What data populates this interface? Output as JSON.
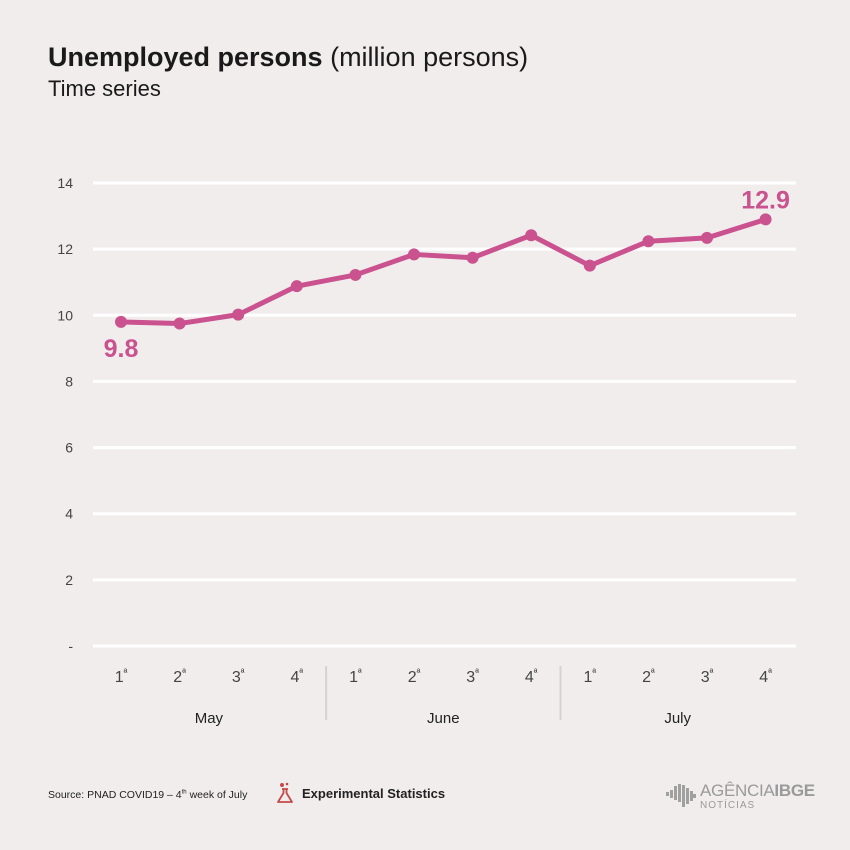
{
  "header": {
    "title": "Unemployed persons",
    "unit": "(million persons)",
    "subtitle": "Time series"
  },
  "chart_data": {
    "type": "line",
    "title": "Unemployed persons (million persons)",
    "subtitle": "Time series",
    "x": [
      "1ª",
      "2ª",
      "3ª",
      "4ª",
      "1ª",
      "2ª",
      "3ª",
      "4ª",
      "1ª",
      "2ª",
      "3ª",
      "4ª"
    ],
    "groups": [
      {
        "label": "May",
        "count": 4
      },
      {
        "label": "June",
        "count": 4
      },
      {
        "label": "July",
        "count": 4
      }
    ],
    "series": [
      {
        "values": [
          9.8,
          9.75,
          10.02,
          10.88,
          11.22,
          11.84,
          11.74,
          12.42,
          11.5,
          12.24,
          12.34,
          12.9
        ]
      }
    ],
    "data_labels": [
      {
        "index": 0,
        "text": "9.8"
      },
      {
        "index": 11,
        "text": "12.9"
      }
    ],
    "yticks": [
      "-",
      "2",
      "4",
      "6",
      "8",
      "10",
      "12",
      "14"
    ],
    "ylim": [
      0,
      14
    ],
    "grid": true,
    "colors": {
      "line": "#c9528f",
      "grid": "#ffffff",
      "axis_text": "#444444",
      "group_divider": "#d6d2d2"
    }
  },
  "footer": {
    "source_prefix": "Source: PNAD COVID19 – 4",
    "source_sup": "th",
    "source_suffix": " week of July",
    "experimental_label": "Experimental Statistics",
    "experimental_icon": "flask-icon",
    "logo_main_a": "AGÊNCIA",
    "logo_main_b": "IBGE",
    "logo_sub": "NOTÍCIAS"
  }
}
